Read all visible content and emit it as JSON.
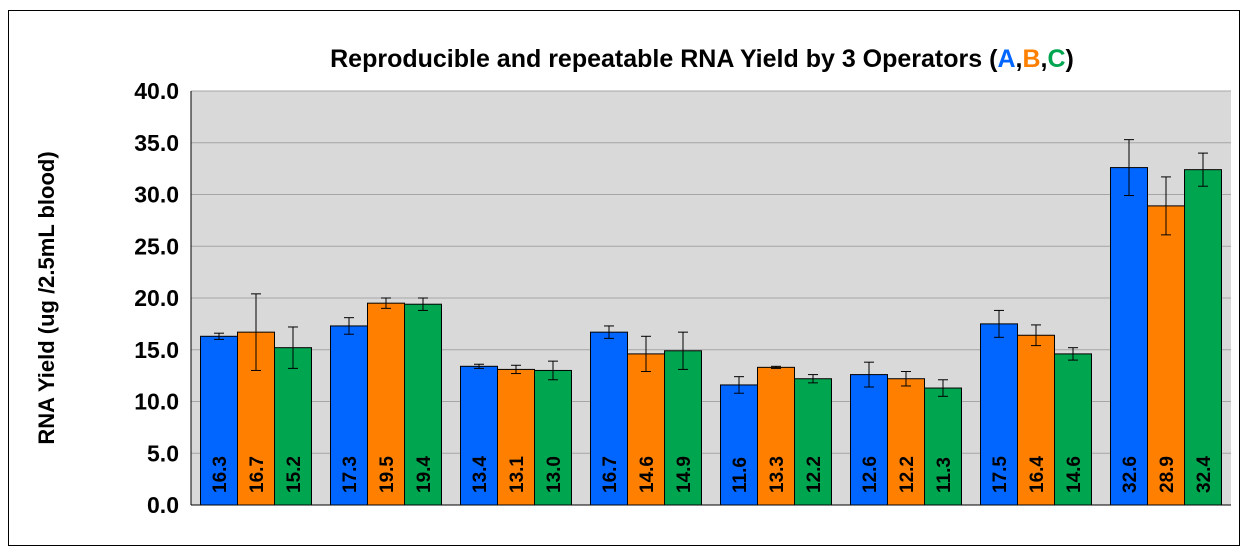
{
  "chart_data": {
    "type": "bar",
    "title": "Reproducible and repeatable RNA Yield by 3 Operators",
    "title_paren_open": "(",
    "title_paren_close": ")",
    "title_sep": ",",
    "ylabel": "RNA Yield (ug /2.5mL blood)",
    "xlabel": "",
    "ylim": [
      0,
      40
    ],
    "ytick_labels": [
      "0.0",
      "5.0",
      "10.0",
      "15.0",
      "20.0",
      "25.0",
      "30.0",
      "35.0",
      "40.0"
    ],
    "grid": "horizontal",
    "plot_background": "#d9d9d9",
    "categories": [
      "",
      "",
      "",
      "",
      "",
      "",
      "",
      ""
    ],
    "series": [
      {
        "name": "A",
        "color": "#0066ff",
        "values": [
          16.3,
          17.3,
          13.4,
          16.7,
          11.6,
          12.6,
          17.5,
          32.6
        ],
        "labels": [
          "16.3",
          "17.3",
          "13.4",
          "16.7",
          "11.6",
          "12.6",
          "17.5",
          "32.6"
        ],
        "errors": [
          0.3,
          0.8,
          0.2,
          0.6,
          0.8,
          1.2,
          1.3,
          2.7
        ]
      },
      {
        "name": "B",
        "color": "#ff8000",
        "values": [
          16.7,
          19.5,
          13.1,
          14.6,
          13.3,
          12.2,
          16.4,
          28.9
        ],
        "labels": [
          "16.7",
          "19.5",
          "13.1",
          "14.6",
          "13.3",
          "12.2",
          "16.4",
          "28.9"
        ],
        "errors": [
          3.7,
          0.5,
          0.4,
          1.7,
          0.1,
          0.7,
          1.0,
          2.8
        ]
      },
      {
        "name": "C",
        "color": "#00a550",
        "values": [
          15.2,
          19.4,
          13.0,
          14.9,
          12.2,
          11.3,
          14.6,
          32.4
        ],
        "labels": [
          "15.2",
          "19.4",
          "13.0",
          "14.9",
          "12.2",
          "11.3",
          "14.6",
          "32.4"
        ],
        "errors": [
          2.0,
          0.6,
          0.9,
          1.8,
          0.4,
          0.8,
          0.6,
          1.6
        ]
      }
    ]
  }
}
